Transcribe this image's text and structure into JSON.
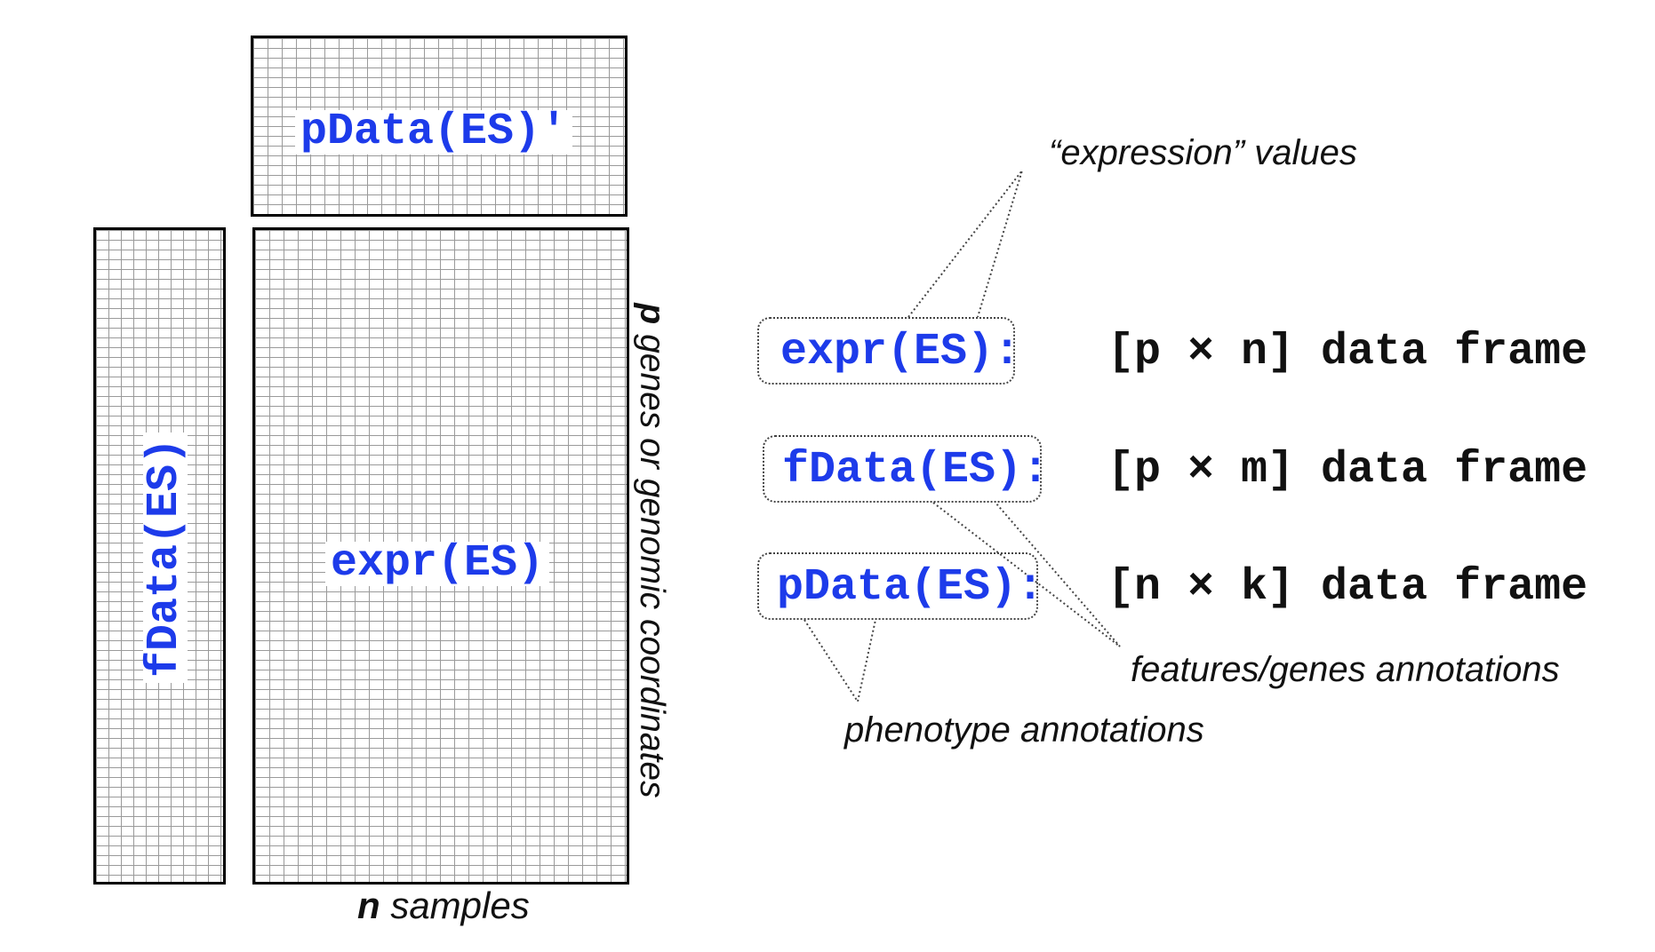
{
  "matrices": {
    "pdata_label": "pData(ES)'",
    "fdata_label": "fData(ES)",
    "expr_label": "expr(ES)"
  },
  "axes": {
    "n_symbol": "n",
    "n_text": " samples",
    "p_symbol": "p",
    "p_text": " genes or genomic coordinates"
  },
  "legend": {
    "rows": [
      {
        "code": "expr(ES)",
        "colon": ":",
        "type": "[p × n] data frame"
      },
      {
        "code": "fData(ES)",
        "colon": ":",
        "type": "[p × m] data frame"
      },
      {
        "code": "pData(ES)",
        "colon": ":",
        "type": "[n × k] data frame"
      }
    ],
    "expression_values": "“expression” values",
    "features_annotations": "features/genes annotations",
    "phenotype_annotations": "phenotype annotations"
  },
  "colors": {
    "code_blue": "#1d3bea",
    "grid_line": "#9a9a9a",
    "border": "#000000"
  }
}
